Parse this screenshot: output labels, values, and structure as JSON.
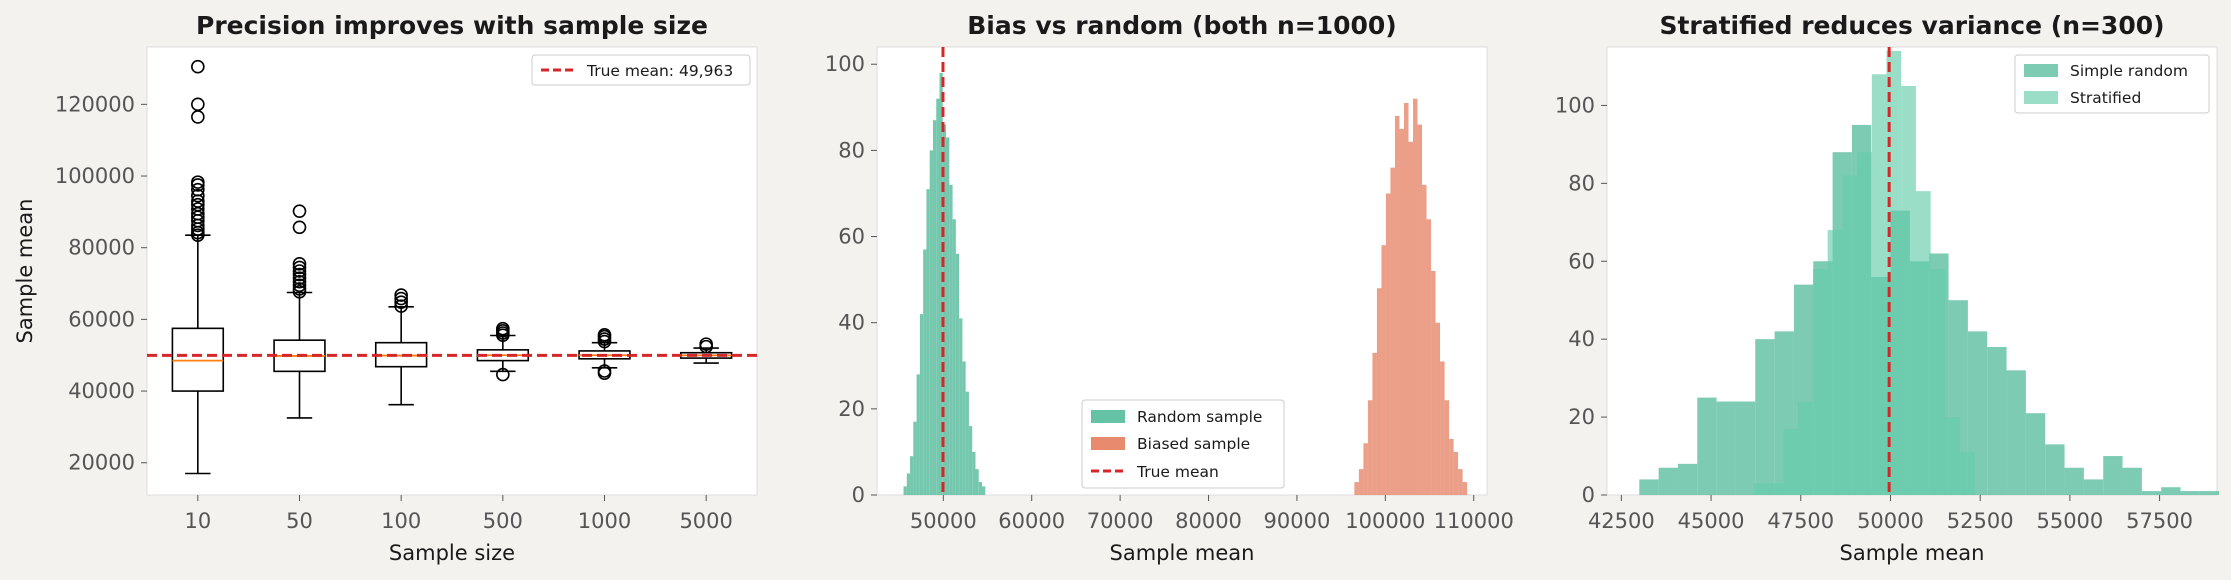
{
  "chart_data": [
    {
      "type": "boxplot",
      "title": "Precision improves with sample size",
      "xlabel": "Sample size",
      "ylabel": "Sample mean",
      "categories": [
        "10",
        "50",
        "100",
        "500",
        "1000",
        "5000"
      ],
      "ylim": [
        11000,
        136000
      ],
      "yticks": [
        20000,
        40000,
        60000,
        80000,
        100000,
        120000
      ],
      "boxes": [
        {
          "whislo": 17000,
          "q1": 40000,
          "med": 48500,
          "q3": 57500,
          "whishi": 83500,
          "fliers": [
            83500,
            84200,
            85200,
            86200,
            87500,
            88500,
            89500,
            90800,
            92000,
            93000,
            94500,
            96200,
            97500,
            98300,
            116500,
            120000,
            130500
          ]
        },
        {
          "whislo": 32500,
          "q1": 45500,
          "med": 49800,
          "q3": 54200,
          "whishi": 67500,
          "fliers": [
            67700,
            68500,
            69500,
            70500,
            71500,
            72500,
            73500,
            74500,
            75500,
            85700,
            90200
          ]
        },
        {
          "whislo": 36200,
          "q1": 46800,
          "med": 49900,
          "q3": 53500,
          "whishi": 63500,
          "fliers": [
            63700,
            64800,
            65800,
            66800
          ]
        },
        {
          "whislo": 45500,
          "q1": 48500,
          "med": 50000,
          "q3": 51500,
          "whishi": 55500,
          "fliers": [
            44600,
            55600,
            56200,
            56800,
            57400
          ]
        },
        {
          "whislo": 46500,
          "q1": 49000,
          "med": 50000,
          "q3": 51200,
          "whishi": 53500,
          "fliers": [
            45000,
            45600,
            53800,
            54500,
            55200,
            55700
          ]
        },
        {
          "whislo": 47800,
          "q1": 49200,
          "med": 49950,
          "q3": 50700,
          "whishi": 52000,
          "fliers": [
            52400,
            53100
          ]
        }
      ],
      "hline": {
        "value": 49963,
        "label": "True mean: 49,963"
      },
      "legend_position": "upper-right",
      "grid": false
    },
    {
      "type": "histogram",
      "title": "Bias vs random (both n=1000)",
      "xlabel": "Sample mean",
      "xlim": [
        42500,
        111500
      ],
      "ylim": [
        0,
        104
      ],
      "xticks": [
        50000,
        60000,
        70000,
        80000,
        90000,
        100000,
        110000
      ],
      "yticks": [
        0,
        20,
        40,
        60,
        80,
        100
      ],
      "series": [
        {
          "name": "Random sample",
          "color": "#66c2a5",
          "alpha": 0.9,
          "bin_start": 45500,
          "bin_width": 370,
          "counts": [
            2,
            5,
            9,
            17,
            28,
            42,
            57,
            71,
            80,
            87,
            92,
            98,
            86,
            83,
            72,
            64,
            56,
            41,
            31,
            24,
            16,
            10,
            6,
            3,
            2
          ]
        },
        {
          "name": "Biased sample",
          "color": "#e78a6e",
          "alpha": 0.82,
          "bin_start": 96500,
          "bin_width": 510,
          "counts": [
            3,
            6,
            12,
            22,
            33,
            48,
            58,
            70,
            76,
            88,
            85,
            91,
            82,
            92,
            86,
            72,
            64,
            52,
            40,
            31,
            22,
            13,
            10,
            6,
            3
          ]
        }
      ],
      "vline": {
        "value": 49963,
        "label": "True mean"
      },
      "legend_position": "lower-center",
      "grid": false
    },
    {
      "type": "histogram",
      "title": "Stratified reduces variance (n=300)",
      "xlabel": "Sample mean",
      "xlim": [
        42100,
        59100
      ],
      "ylim": [
        0,
        115
      ],
      "xticks": [
        42500,
        45000,
        47500,
        50000,
        52500,
        55000,
        57500
      ],
      "yticks": [
        0,
        20,
        40,
        60,
        80,
        100
      ],
      "series": [
        {
          "name": "Simple random",
          "color": "#66c2a5",
          "alpha": 0.85,
          "bin_start": 43000,
          "bin_width": 538.7,
          "counts": [
            4,
            7,
            8,
            25,
            24,
            24,
            40,
            42,
            54,
            60,
            88,
            95,
            56,
            73,
            60,
            62,
            50,
            42,
            38,
            32,
            21,
            13,
            7,
            4,
            10,
            7,
            1,
            2,
            1,
            1
          ]
        },
        {
          "name": "Stratified",
          "color": "#66cdaa",
          "alpha": 0.65,
          "bin_start": 46200,
          "bin_width": 410,
          "counts": [
            3,
            3,
            17,
            24,
            58,
            68,
            82,
            88,
            108,
            114,
            105,
            78,
            58,
            20,
            11
          ]
        }
      ],
      "vline": {
        "value": 49963,
        "label": ""
      },
      "legend_position": "upper-right",
      "grid": false
    }
  ]
}
